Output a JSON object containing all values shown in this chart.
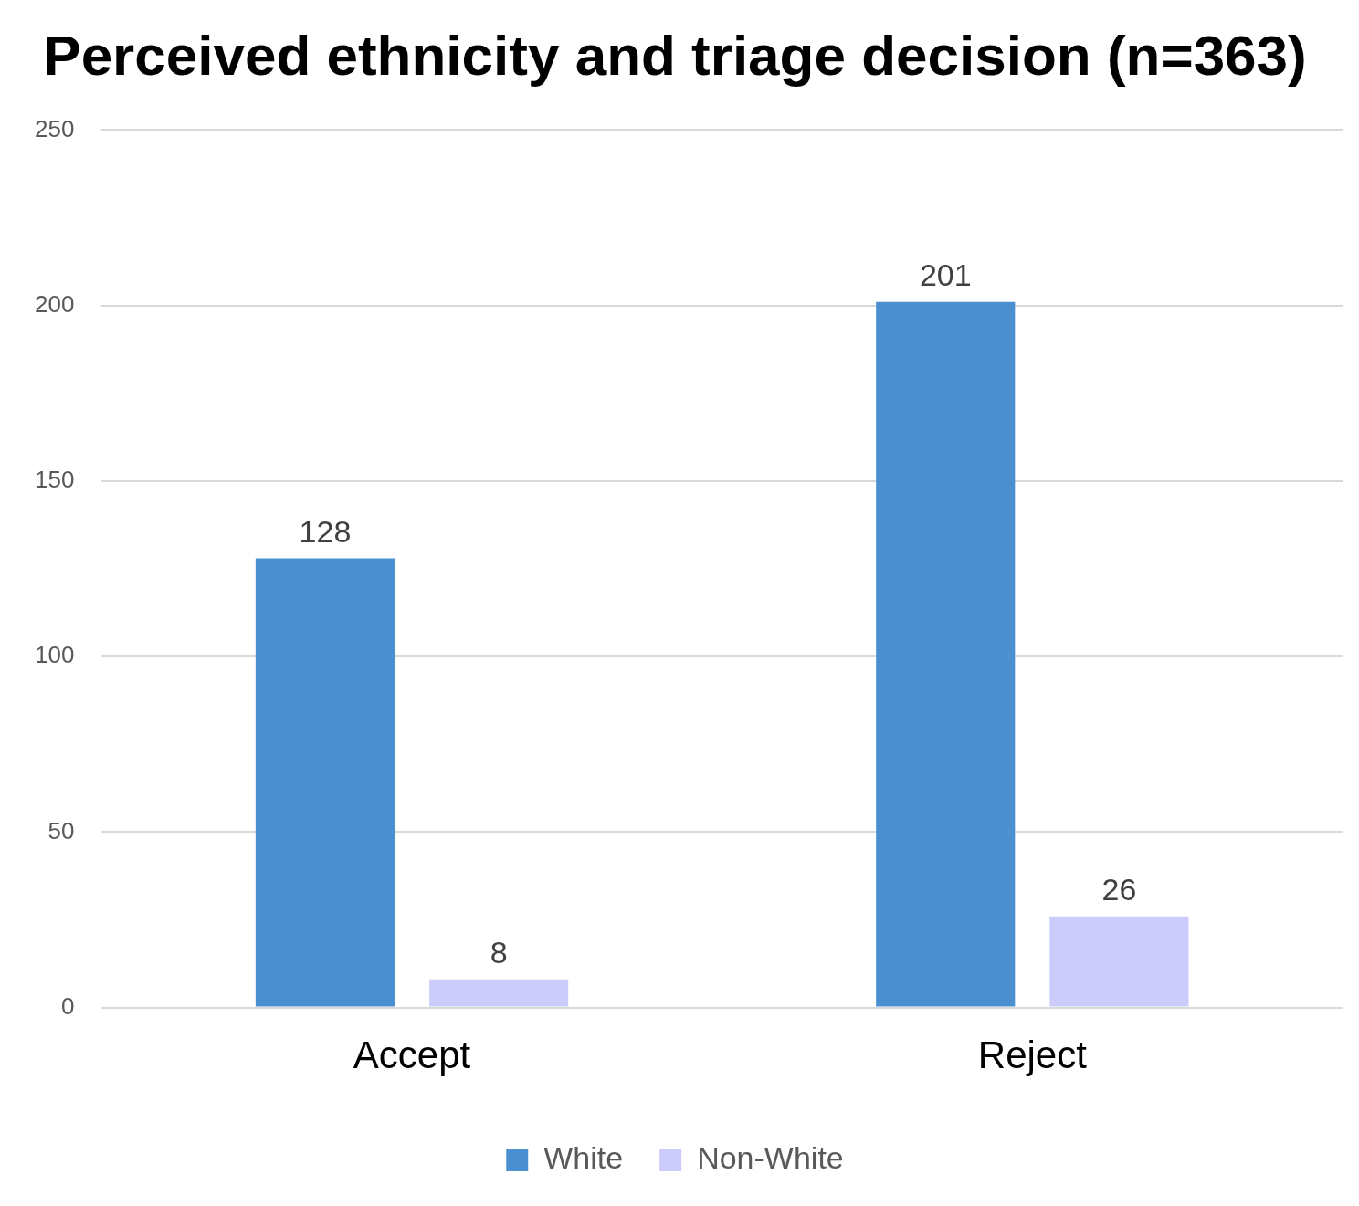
{
  "chart_data": {
    "type": "bar",
    "title": "Perceived ethnicity and triage decision (n=363)",
    "categories": [
      "Accept",
      "Reject"
    ],
    "series": [
      {
        "name": "White",
        "color": "#4a90d0",
        "values": [
          128,
          201
        ]
      },
      {
        "name": "Non-White",
        "color": "#ccccfa",
        "values": [
          8,
          26
        ]
      }
    ],
    "ylim": [
      0,
      250
    ],
    "yticks": [
      0,
      50,
      100,
      150,
      200,
      250
    ],
    "grid": "y",
    "legend": "bottom",
    "data_labels": true
  }
}
